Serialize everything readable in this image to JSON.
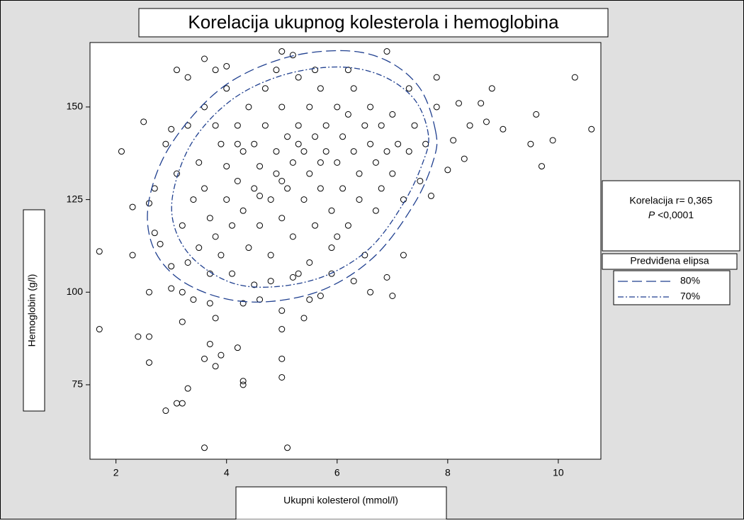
{
  "chart_data": {
    "type": "scatter",
    "title": "Korelacija ukupnog kolesterola i hemoglobina",
    "xlabel": "Ukupni kolesterol (mmol/l)",
    "ylabel": "Hemoglobin (g/l)",
    "annotation": {
      "line1": "Korelacija r= 0,365",
      "p_symbol": "P",
      "p_value": "<0,0001"
    },
    "legend_title": "Predviđena elipsa",
    "xlim": [
      1.53,
      10.77
    ],
    "ylim": [
      54.9,
      167.4
    ],
    "xticks": [
      2,
      4,
      6,
      8,
      10
    ],
    "yticks": [
      75,
      100,
      125,
      150
    ],
    "marker_color": "#000000",
    "points": [
      [
        1.7,
        111
      ],
      [
        1.7,
        90
      ],
      [
        2.1,
        138
      ],
      [
        2.3,
        110
      ],
      [
        2.3,
        123
      ],
      [
        2.4,
        88
      ],
      [
        2.5,
        146
      ],
      [
        2.6,
        88
      ],
      [
        2.6,
        81
      ],
      [
        2.6,
        100
      ],
      [
        2.9,
        68
      ],
      [
        3.1,
        70
      ],
      [
        3.2,
        70
      ],
      [
        3.3,
        74
      ],
      [
        3.2,
        92
      ],
      [
        3.6,
        58
      ],
      [
        5.1,
        58
      ],
      [
        3.6,
        82
      ],
      [
        3.7,
        86
      ],
      [
        3.8,
        80
      ],
      [
        3.8,
        93
      ],
      [
        3.9,
        83
      ],
      [
        4.2,
        85
      ],
      [
        4.3,
        76
      ],
      [
        4.3,
        75
      ],
      [
        5.0,
        82
      ],
      [
        5.0,
        77
      ],
      [
        5.0,
        90
      ],
      [
        5.0,
        95
      ],
      [
        5.4,
        93
      ],
      [
        6.6,
        100
      ],
      [
        6.9,
        104
      ],
      [
        7.0,
        99
      ],
      [
        7.2,
        110
      ],
      [
        8.8,
        155
      ],
      [
        9.0,
        144
      ],
      [
        9.5,
        140
      ],
      [
        9.6,
        148
      ],
      [
        9.7,
        134
      ],
      [
        9.9,
        141
      ],
      [
        10.3,
        158
      ],
      [
        10.6,
        144
      ],
      [
        8.7,
        146
      ],
      [
        8.4,
        145
      ],
      [
        8.2,
        151
      ],
      [
        8.0,
        133
      ],
      [
        8.1,
        141
      ],
      [
        8.3,
        136
      ],
      [
        8.6,
        151
      ],
      [
        3.6,
        163
      ],
      [
        4.0,
        161
      ],
      [
        5.0,
        165
      ],
      [
        5.2,
        164
      ],
      [
        6.9,
        165
      ],
      [
        3.1,
        160
      ],
      [
        3.3,
        158
      ],
      [
        3.8,
        160
      ],
      [
        3.0,
        144
      ],
      [
        2.9,
        140
      ],
      [
        2.8,
        113
      ],
      [
        2.7,
        116
      ],
      [
        2.7,
        128
      ],
      [
        2.6,
        124
      ],
      [
        3.0,
        107
      ],
      [
        3.0,
        101
      ],
      [
        3.2,
        100
      ],
      [
        3.4,
        98
      ],
      [
        3.7,
        97
      ],
      [
        4.3,
        97
      ],
      [
        4.6,
        98
      ],
      [
        5.5,
        98
      ],
      [
        5.7,
        99
      ],
      [
        6.3,
        103
      ],
      [
        5.3,
        105
      ],
      [
        5.9,
        105
      ],
      [
        3.5,
        135
      ],
      [
        3.6,
        128
      ],
      [
        3.7,
        120
      ],
      [
        3.8,
        115
      ],
      [
        3.9,
        110
      ],
      [
        3.9,
        140
      ],
      [
        4.0,
        134
      ],
      [
        4.0,
        125
      ],
      [
        4.1,
        118
      ],
      [
        4.1,
        105
      ],
      [
        4.2,
        145
      ],
      [
        4.2,
        130
      ],
      [
        4.3,
        138
      ],
      [
        4.3,
        122
      ],
      [
        4.4,
        112
      ],
      [
        4.4,
        150
      ],
      [
        4.5,
        140
      ],
      [
        4.5,
        128
      ],
      [
        4.6,
        134
      ],
      [
        4.6,
        118
      ],
      [
        4.7,
        155
      ],
      [
        4.7,
        145
      ],
      [
        4.8,
        125
      ],
      [
        4.8,
        110
      ],
      [
        4.9,
        138
      ],
      [
        4.9,
        132
      ],
      [
        5.0,
        150
      ],
      [
        5.0,
        120
      ],
      [
        5.1,
        142
      ],
      [
        5.1,
        128
      ],
      [
        5.2,
        135
      ],
      [
        5.2,
        115
      ],
      [
        5.3,
        158
      ],
      [
        5.3,
        145
      ],
      [
        5.4,
        138
      ],
      [
        5.4,
        125
      ],
      [
        5.5,
        150
      ],
      [
        5.5,
        132
      ],
      [
        5.6,
        142
      ],
      [
        5.6,
        118
      ],
      [
        5.7,
        155
      ],
      [
        5.7,
        128
      ],
      [
        5.8,
        145
      ],
      [
        5.8,
        138
      ],
      [
        5.9,
        122
      ],
      [
        5.9,
        112
      ],
      [
        6.0,
        150
      ],
      [
        6.0,
        135
      ],
      [
        6.1,
        142
      ],
      [
        6.1,
        128
      ],
      [
        6.2,
        148
      ],
      [
        6.2,
        118
      ],
      [
        6.3,
        138
      ],
      [
        6.3,
        155
      ],
      [
        6.4,
        132
      ],
      [
        6.4,
        125
      ],
      [
        6.5,
        145
      ],
      [
        6.5,
        110
      ],
      [
        6.6,
        140
      ],
      [
        6.6,
        150
      ],
      [
        6.7,
        135
      ],
      [
        6.7,
        122
      ],
      [
        6.8,
        145
      ],
      [
        6.8,
        128
      ],
      [
        6.9,
        138
      ],
      [
        7.0,
        148
      ],
      [
        7.0,
        132
      ],
      [
        7.1,
        140
      ],
      [
        7.2,
        125
      ],
      [
        7.3,
        138
      ],
      [
        7.4,
        145
      ],
      [
        7.5,
        130
      ],
      [
        7.6,
        140
      ],
      [
        7.7,
        126
      ],
      [
        7.8,
        150
      ],
      [
        3.3,
        145
      ],
      [
        3.4,
        125
      ],
      [
        3.2,
        118
      ],
      [
        3.1,
        132
      ],
      [
        3.5,
        112
      ],
      [
        3.6,
        150
      ],
      [
        3.7,
        105
      ],
      [
        3.8,
        145
      ],
      [
        3.3,
        108
      ],
      [
        4.0,
        155
      ],
      [
        4.5,
        102
      ],
      [
        4.8,
        103
      ],
      [
        5.2,
        104
      ],
      [
        5.5,
        108
      ],
      [
        6.0,
        115
      ],
      [
        5.0,
        130
      ],
      [
        4.6,
        126
      ],
      [
        5.3,
        140
      ],
      [
        5.7,
        135
      ],
      [
        4.2,
        140
      ],
      [
        6.2,
        160
      ],
      [
        5.6,
        160
      ],
      [
        4.9,
        160
      ],
      [
        7.3,
        155
      ],
      [
        7.8,
        158
      ]
    ],
    "ellipses": [
      {
        "name": "80%",
        "color": "#1f3f8f",
        "dash": "14 6",
        "points": [
          [
            7.78,
            143.5
          ],
          [
            7.5,
            155
          ],
          [
            6.9,
            162.5
          ],
          [
            6.1,
            165.2
          ],
          [
            5.0,
            163
          ],
          [
            3.9,
            155
          ],
          [
            3.0,
            140
          ],
          [
            2.6,
            125
          ],
          [
            2.65,
            113
          ],
          [
            3.1,
            104
          ],
          [
            3.9,
            98.5
          ],
          [
            4.8,
            97.5
          ],
          [
            5.8,
            101
          ],
          [
            6.7,
            110
          ],
          [
            7.4,
            124
          ],
          [
            7.75,
            136
          ]
        ]
      },
      {
        "name": "70%",
        "color": "#1f3f8f",
        "dash": "8 3 2 3",
        "points": [
          [
            7.65,
            142.5
          ],
          [
            7.4,
            152
          ],
          [
            6.8,
            158.5
          ],
          [
            6.0,
            160.8
          ],
          [
            5.0,
            158.5
          ],
          [
            4.1,
            152
          ],
          [
            3.4,
            141
          ],
          [
            3.05,
            128
          ],
          [
            3.05,
            118
          ],
          [
            3.4,
            109
          ],
          [
            4.1,
            102.5
          ],
          [
            4.9,
            101.5
          ],
          [
            5.8,
            104.5
          ],
          [
            6.6,
            112
          ],
          [
            7.2,
            124
          ],
          [
            7.55,
            135
          ]
        ]
      }
    ]
  }
}
